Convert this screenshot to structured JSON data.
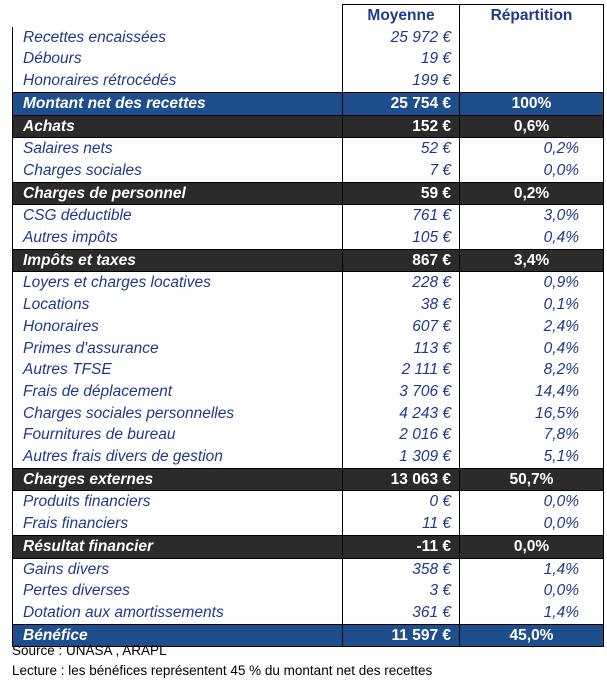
{
  "header": {
    "col_average": "Moyenne",
    "col_share": "Répartition"
  },
  "rows": [
    {
      "type": "detail",
      "label": "Recettes encaissées",
      "value": "25 972 €",
      "share": ""
    },
    {
      "type": "detail",
      "label": "Débours",
      "value": "19 €",
      "share": ""
    },
    {
      "type": "detail",
      "label": "Honoraires rétrocédés",
      "value": "199 €",
      "share": ""
    },
    {
      "type": "total",
      "label": "Montant net des recettes",
      "value": "25 754 €",
      "share": "100%"
    },
    {
      "type": "subtotal",
      "label": "Achats",
      "value": "152 €",
      "share": "0,6%"
    },
    {
      "type": "detail",
      "label": "Salaires nets",
      "value": "52 €",
      "share": "0,2%"
    },
    {
      "type": "detail",
      "label": "Charges sociales",
      "value": "7 €",
      "share": "0,0%"
    },
    {
      "type": "subtotal",
      "label": "Charges de personnel",
      "value": "59 €",
      "share": "0,2%"
    },
    {
      "type": "detail",
      "label": "CSG déductible",
      "value": "761 €",
      "share": "3,0%"
    },
    {
      "type": "detail",
      "label": "Autres impôts",
      "value": "105 €",
      "share": "0,4%"
    },
    {
      "type": "subtotal",
      "label": "Impôts et taxes",
      "value": "867 €",
      "share": "3,4%"
    },
    {
      "type": "detail",
      "label": "Loyers et charges locatives",
      "value": "228 €",
      "share": "0,9%"
    },
    {
      "type": "detail",
      "label": "Locations",
      "value": "38 €",
      "share": "0,1%"
    },
    {
      "type": "detail",
      "label": "Honoraires",
      "value": "607 €",
      "share": "2,4%"
    },
    {
      "type": "detail",
      "label": "Primes d'assurance",
      "value": "113 €",
      "share": "0,4%"
    },
    {
      "type": "detail",
      "label": "Autres TFSE",
      "value": "2 111 €",
      "share": "8,2%"
    },
    {
      "type": "detail",
      "label": "Frais de déplacement",
      "value": "3 706 €",
      "share": "14,4%"
    },
    {
      "type": "detail",
      "label": "Charges sociales personnelles",
      "value": "4 243 €",
      "share": "16,5%"
    },
    {
      "type": "detail",
      "label": "Fournitures de bureau",
      "value": "2 016 €",
      "share": "7,8%"
    },
    {
      "type": "detail",
      "label": "Autres frais divers de gestion",
      "value": "1 309 €",
      "share": "5,1%"
    },
    {
      "type": "subtotal",
      "label": "Charges externes",
      "value": "13 063 €",
      "share": "50,7%"
    },
    {
      "type": "detail",
      "label": "Produits financiers",
      "value": "0 €",
      "share": "0,0%"
    },
    {
      "type": "detail",
      "label": "Frais financiers",
      "value": "11 €",
      "share": "0,0%"
    },
    {
      "type": "subtotal",
      "label": "Résultat financier",
      "value": "-11 €",
      "share": "0,0%"
    },
    {
      "type": "detail",
      "label": "Gains divers",
      "value": "358 €",
      "share": "1,4%"
    },
    {
      "type": "detail",
      "label": "Pertes diverses",
      "value": "3 €",
      "share": "0,0%"
    },
    {
      "type": "detail",
      "label": "Dotation aux amortissements",
      "value": "361 €",
      "share": "1,4%"
    },
    {
      "type": "total",
      "label": "Bénéfice",
      "value": "11 597 €",
      "share": "45,0%"
    }
  ],
  "footer": {
    "source": "Source : UNASA , ARAPL",
    "reading": "Lecture : les bénéfices représentent 45 % du montant net des recettes"
  }
}
